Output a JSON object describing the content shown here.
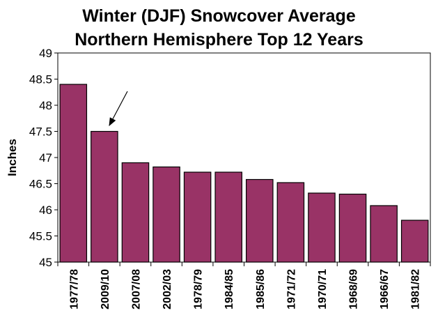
{
  "chart_data": {
    "type": "bar",
    "title": "Winter (DJF) Snowcover Average",
    "subtitle": "Northern Hemisphere Top 12 Years",
    "xlabel": "",
    "ylabel": "Inches",
    "ylim": [
      45,
      49
    ],
    "yticks": [
      "45",
      "45.5",
      "46",
      "46.5",
      "47",
      "47.5",
      "48",
      "48.5",
      "49"
    ],
    "categories": [
      "1977/78",
      "2009/10",
      "2007/08",
      "2002/03",
      "1978/79",
      "1984/85",
      "1985/86",
      "1971/72",
      "1970/71",
      "1968/69",
      "1966/67",
      "1981/82"
    ],
    "values": [
      48.4,
      47.5,
      46.9,
      46.82,
      46.72,
      46.72,
      46.58,
      46.52,
      46.32,
      46.3,
      46.08,
      45.8
    ],
    "bar_color": "#993366",
    "grid": false,
    "legend": "none",
    "annotation": "arrow pointing to 2009/10"
  }
}
